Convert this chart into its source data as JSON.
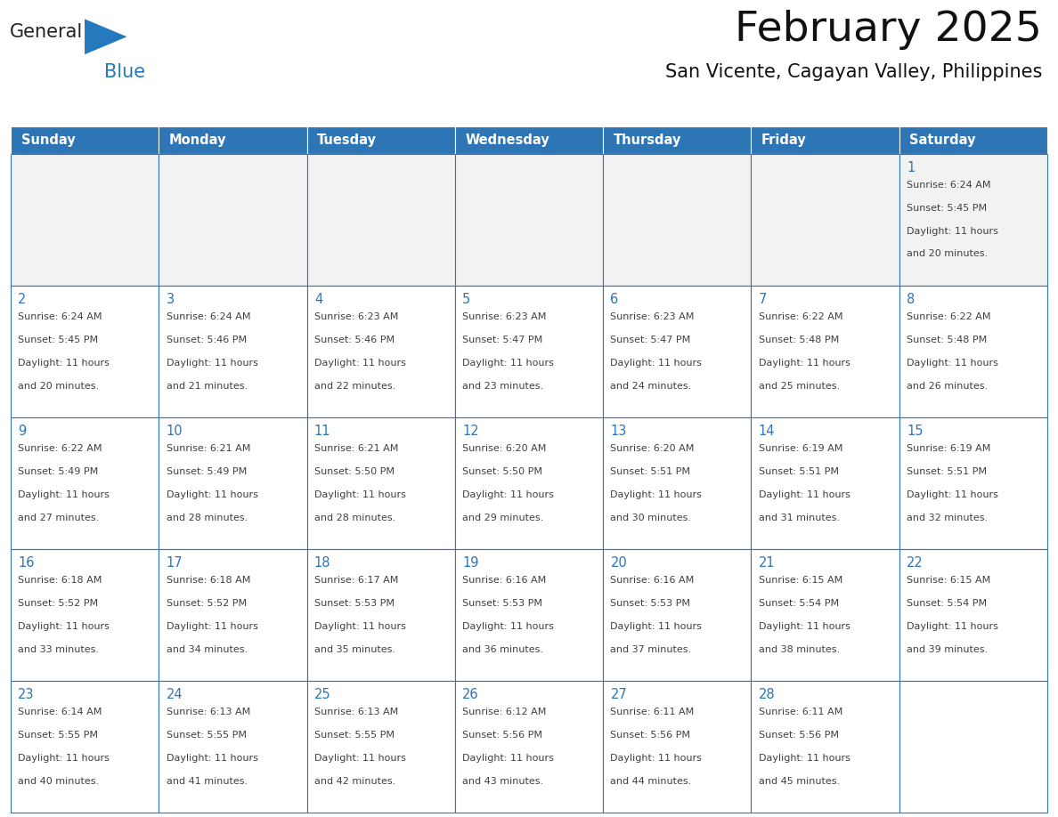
{
  "title": "February 2025",
  "subtitle": "San Vicente, Cagayan Valley, Philippines",
  "header_color": "#2E75B6",
  "header_text_color": "#FFFFFF",
  "cell_bg_color": "#FFFFFF",
  "cell_bg_alt": "#F2F2F2",
  "cell_line_color": "#2E75B6",
  "day_number_color": "#2E75B6",
  "info_text_color": "#404040",
  "days_of_week": [
    "Sunday",
    "Monday",
    "Tuesday",
    "Wednesday",
    "Thursday",
    "Friday",
    "Saturday"
  ],
  "calendar_data": [
    [
      {
        "day": null,
        "info": ""
      },
      {
        "day": null,
        "info": ""
      },
      {
        "day": null,
        "info": ""
      },
      {
        "day": null,
        "info": ""
      },
      {
        "day": null,
        "info": ""
      },
      {
        "day": null,
        "info": ""
      },
      {
        "day": 1,
        "info": "Sunrise: 6:24 AM\nSunset: 5:45 PM\nDaylight: 11 hours\nand 20 minutes."
      }
    ],
    [
      {
        "day": 2,
        "info": "Sunrise: 6:24 AM\nSunset: 5:45 PM\nDaylight: 11 hours\nand 20 minutes."
      },
      {
        "day": 3,
        "info": "Sunrise: 6:24 AM\nSunset: 5:46 PM\nDaylight: 11 hours\nand 21 minutes."
      },
      {
        "day": 4,
        "info": "Sunrise: 6:23 AM\nSunset: 5:46 PM\nDaylight: 11 hours\nand 22 minutes."
      },
      {
        "day": 5,
        "info": "Sunrise: 6:23 AM\nSunset: 5:47 PM\nDaylight: 11 hours\nand 23 minutes."
      },
      {
        "day": 6,
        "info": "Sunrise: 6:23 AM\nSunset: 5:47 PM\nDaylight: 11 hours\nand 24 minutes."
      },
      {
        "day": 7,
        "info": "Sunrise: 6:22 AM\nSunset: 5:48 PM\nDaylight: 11 hours\nand 25 minutes."
      },
      {
        "day": 8,
        "info": "Sunrise: 6:22 AM\nSunset: 5:48 PM\nDaylight: 11 hours\nand 26 minutes."
      }
    ],
    [
      {
        "day": 9,
        "info": "Sunrise: 6:22 AM\nSunset: 5:49 PM\nDaylight: 11 hours\nand 27 minutes."
      },
      {
        "day": 10,
        "info": "Sunrise: 6:21 AM\nSunset: 5:49 PM\nDaylight: 11 hours\nand 28 minutes."
      },
      {
        "day": 11,
        "info": "Sunrise: 6:21 AM\nSunset: 5:50 PM\nDaylight: 11 hours\nand 28 minutes."
      },
      {
        "day": 12,
        "info": "Sunrise: 6:20 AM\nSunset: 5:50 PM\nDaylight: 11 hours\nand 29 minutes."
      },
      {
        "day": 13,
        "info": "Sunrise: 6:20 AM\nSunset: 5:51 PM\nDaylight: 11 hours\nand 30 minutes."
      },
      {
        "day": 14,
        "info": "Sunrise: 6:19 AM\nSunset: 5:51 PM\nDaylight: 11 hours\nand 31 minutes."
      },
      {
        "day": 15,
        "info": "Sunrise: 6:19 AM\nSunset: 5:51 PM\nDaylight: 11 hours\nand 32 minutes."
      }
    ],
    [
      {
        "day": 16,
        "info": "Sunrise: 6:18 AM\nSunset: 5:52 PM\nDaylight: 11 hours\nand 33 minutes."
      },
      {
        "day": 17,
        "info": "Sunrise: 6:18 AM\nSunset: 5:52 PM\nDaylight: 11 hours\nand 34 minutes."
      },
      {
        "day": 18,
        "info": "Sunrise: 6:17 AM\nSunset: 5:53 PM\nDaylight: 11 hours\nand 35 minutes."
      },
      {
        "day": 19,
        "info": "Sunrise: 6:16 AM\nSunset: 5:53 PM\nDaylight: 11 hours\nand 36 minutes."
      },
      {
        "day": 20,
        "info": "Sunrise: 6:16 AM\nSunset: 5:53 PM\nDaylight: 11 hours\nand 37 minutes."
      },
      {
        "day": 21,
        "info": "Sunrise: 6:15 AM\nSunset: 5:54 PM\nDaylight: 11 hours\nand 38 minutes."
      },
      {
        "day": 22,
        "info": "Sunrise: 6:15 AM\nSunset: 5:54 PM\nDaylight: 11 hours\nand 39 minutes."
      }
    ],
    [
      {
        "day": 23,
        "info": "Sunrise: 6:14 AM\nSunset: 5:55 PM\nDaylight: 11 hours\nand 40 minutes."
      },
      {
        "day": 24,
        "info": "Sunrise: 6:13 AM\nSunset: 5:55 PM\nDaylight: 11 hours\nand 41 minutes."
      },
      {
        "day": 25,
        "info": "Sunrise: 6:13 AM\nSunset: 5:55 PM\nDaylight: 11 hours\nand 42 minutes."
      },
      {
        "day": 26,
        "info": "Sunrise: 6:12 AM\nSunset: 5:56 PM\nDaylight: 11 hours\nand 43 minutes."
      },
      {
        "day": 27,
        "info": "Sunrise: 6:11 AM\nSunset: 5:56 PM\nDaylight: 11 hours\nand 44 minutes."
      },
      {
        "day": 28,
        "info": "Sunrise: 6:11 AM\nSunset: 5:56 PM\nDaylight: 11 hours\nand 45 minutes."
      },
      {
        "day": null,
        "info": ""
      }
    ]
  ],
  "logo_general_color": "#222222",
  "logo_blue_color": "#2779BD",
  "logo_triangle_color": "#2779BD"
}
